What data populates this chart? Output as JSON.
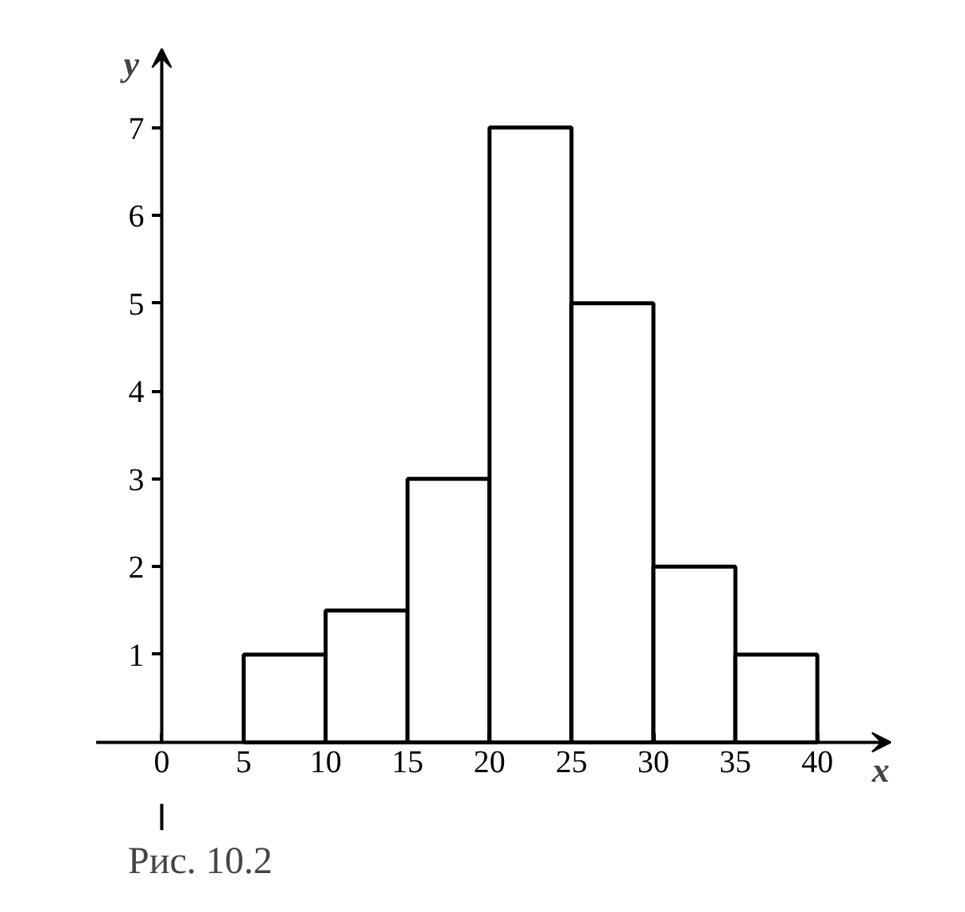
{
  "chart_data": {
    "type": "histogram",
    "bins": [
      5,
      10,
      15,
      20,
      25,
      30,
      35,
      40
    ],
    "values": [
      1,
      1.5,
      3,
      7,
      5,
      2,
      1
    ],
    "color": "#ffffff",
    "xlabel": "x",
    "ylabel": "y",
    "xlim": [
      -4,
      44.5
    ],
    "ylim": [
      -1,
      7.9
    ],
    "xticks": [
      0,
      5,
      10,
      15,
      20,
      25,
      30,
      35,
      40
    ],
    "yticks": [
      1,
      2,
      3,
      4,
      5,
      6,
      7
    ],
    "grid": false,
    "annotations": [
      "Рис. 10.2"
    ]
  }
}
